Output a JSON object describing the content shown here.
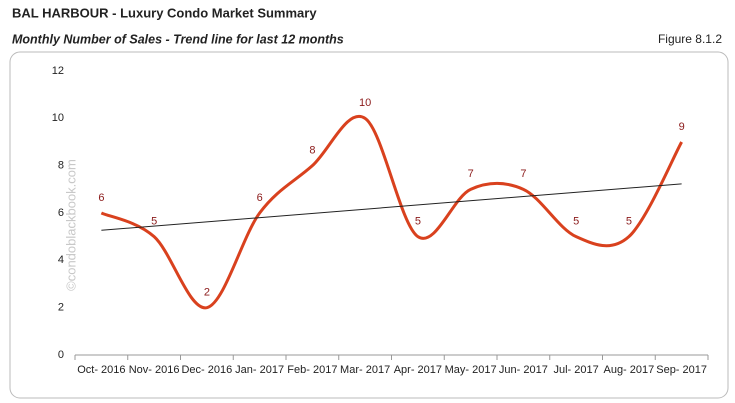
{
  "header": {
    "title": "BAL HARBOUR - Luxury Condo Market Summary",
    "subtitle": "Monthly Number of Sales - Trend line for last 12 months",
    "figure": "Figure 8.1.2"
  },
  "watermark": "©condoblackbook.com",
  "chart_data": {
    "type": "line",
    "categories": [
      "Oct- 2016",
      "Nov- 2016",
      "Dec- 2016",
      "Jan- 2017",
      "Feb- 2017",
      "Mar- 2017",
      "Apr- 2017",
      "May- 2017",
      "Jun- 2017",
      "Jul- 2017",
      "Aug- 2017",
      "Sep- 2017"
    ],
    "values": [
      6,
      5,
      2,
      6,
      8,
      10,
      5,
      7,
      7,
      5,
      5,
      9
    ],
    "color": "#d9411e",
    "label_color": "#8b1a1a",
    "trend_color": "#222222",
    "trendline": true,
    "smooth": true,
    "ylim": [
      0,
      12
    ],
    "yticks": [
      0,
      2,
      4,
      6,
      8,
      10,
      12
    ],
    "grid": false
  }
}
